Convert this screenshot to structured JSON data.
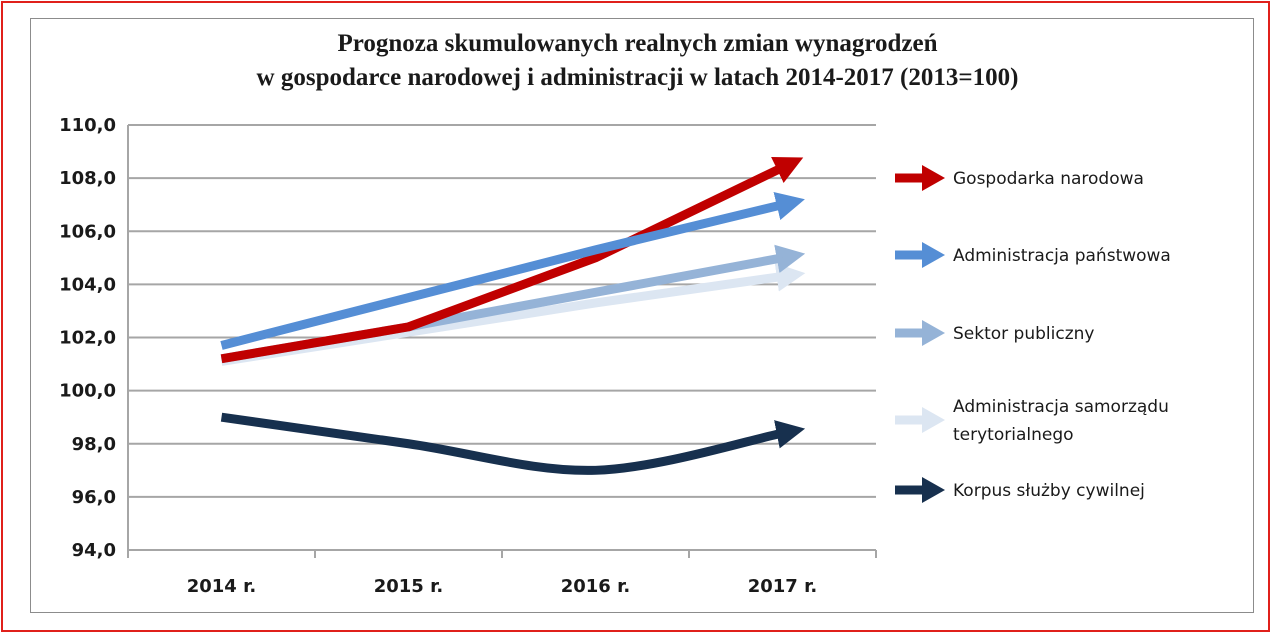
{
  "colors": {
    "frame": "#e0201b",
    "grid": "#a6a6a6",
    "gospodarka": "#c00000",
    "administracja_panstwowa": "#558ed5",
    "sektor_publiczny": "#95b3d7",
    "samorzad": "#dce6f2",
    "korpus": "#17304e"
  },
  "chart_data": {
    "type": "line",
    "title": "Prognoza skumulowanych realnych zmian wynagrodzeń",
    "subtitle": "w gospodarce narodowej i administracji w latach 2014-2017 (2013=100)",
    "categories": [
      "2014 r.",
      "2015 r.",
      "2016 r.",
      "2017 r."
    ],
    "ylim": [
      94,
      110
    ],
    "yticks": [
      "94,0",
      "96,0",
      "98,0",
      "100,0",
      "102,0",
      "104,0",
      "106,0",
      "108,0",
      "110,0"
    ],
    "grid": true,
    "legend_position": "right",
    "series": [
      {
        "name": "Korpus służby cywilnej",
        "values": [
          99.0,
          98.0,
          97.0,
          98.4
        ],
        "color": "#17304e",
        "smooth": true
      },
      {
        "name": "Administracja samorządu terytorialnego",
        "legend_lines": [
          "Administracja samorządu",
          "terytorialnego"
        ],
        "values": [
          101.1,
          102.2,
          103.3,
          104.3
        ],
        "color": "#dce6f2"
      },
      {
        "name": "Sektor publiczny",
        "values": [
          101.2,
          102.4,
          103.7,
          105.0
        ],
        "color": "#95b3d7"
      },
      {
        "name": "Gospodarka narodowa",
        "values": [
          101.2,
          102.4,
          105.0,
          108.4
        ],
        "color": "#c00000"
      },
      {
        "name": "Administracja państwowa",
        "values": [
          101.7,
          103.5,
          105.3,
          107.0
        ],
        "color": "#558ed5"
      }
    ],
    "legend_order": [
      "Gospodarka narodowa",
      "Administracja państwowa",
      "Sektor publiczny",
      "Administracja samorządu terytorialnego",
      "Korpus służby cywilnej"
    ]
  }
}
